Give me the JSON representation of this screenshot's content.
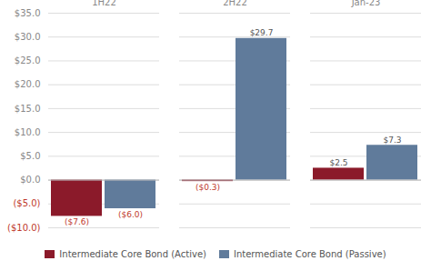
{
  "chart_data": {
    "type": "bar",
    "categories": [
      "1H22",
      "2H22",
      "Jan-23"
    ],
    "series": [
      {
        "name": "Intermediate Core Bond (Active)",
        "color": "#8B1A2A",
        "values": [
          -7.6,
          -0.3,
          2.5
        ],
        "value_labels": [
          "($7.6)",
          "($0.3)",
          "$2.5"
        ]
      },
      {
        "name": "Intermediate Core Bond (Passive)",
        "color": "#607B9B",
        "values": [
          -6.0,
          29.7,
          7.3
        ],
        "value_labels": [
          "($6.0)",
          "$29.7",
          "$7.3"
        ]
      }
    ],
    "ylim": [
      -10.0,
      35.0
    ],
    "yticks": [
      {
        "value": -10.0,
        "label": "($10.0)"
      },
      {
        "value": -5.0,
        "label": "($5.0)"
      },
      {
        "value": 0.0,
        "label": "$0.0"
      },
      {
        "value": 5.0,
        "label": "$5.0"
      },
      {
        "value": 10.0,
        "label": "$10.0"
      },
      {
        "value": 15.0,
        "label": "$15.0"
      },
      {
        "value": 20.0,
        "label": "$20.0"
      },
      {
        "value": 25.0,
        "label": "$25.0"
      },
      {
        "value": 30.0,
        "label": "$30.0"
      },
      {
        "value": 35.0,
        "label": "$35.0"
      }
    ],
    "grid": true,
    "legend": "bottom",
    "data_labels": true
  }
}
